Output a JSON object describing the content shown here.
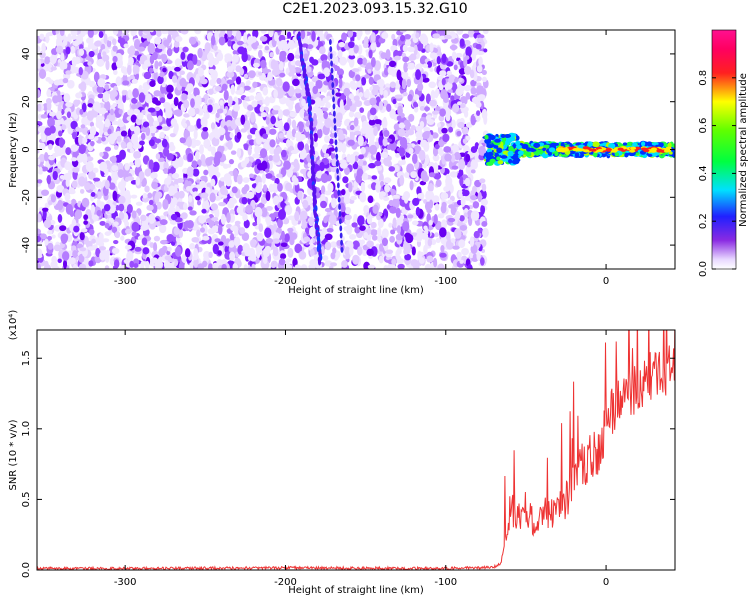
{
  "title": "C2E1.2023.093.15.32.G10",
  "colors": {
    "snr_line": "#ee3333",
    "frame": "#000000"
  },
  "chart_data": [
    {
      "type": "heatmap",
      "xlabel": "Height of straight line (km)",
      "ylabel": "Frequency (Hz)",
      "xlim": [
        -355,
        43
      ],
      "ylim": [
        -50,
        50
      ],
      "xticks": [
        -300,
        -200,
        -100,
        0
      ],
      "yticks": [
        -40,
        -20,
        0,
        20,
        40
      ],
      "colorbar": {
        "label": "Normalized spectral amplitude",
        "range": [
          0,
          1
        ],
        "ticks": [
          "0.0",
          "0.2",
          "0.4",
          "0.6",
          "0.8"
        ],
        "colormap": "rainbow (white-violet-blue-cyan-green-yellow-red-magenta)"
      },
      "features": [
        {
          "name": "noise",
          "x": [
            -355,
            -75
          ],
          "y": [
            -50,
            50
          ],
          "amplitude": "0.1-0.2"
        },
        {
          "name": "trace",
          "points": [
            [
              -192,
              48
            ],
            [
              -185,
              20
            ],
            [
              -182,
              -20
            ],
            [
              -178,
              -48
            ]
          ]
        },
        {
          "name": "signal",
          "x": [
            -75,
            43
          ],
          "center_hz": 0,
          "amplitude": "0.4-0.9"
        }
      ]
    },
    {
      "type": "line",
      "xlabel": "Height of straight line (km)",
      "ylabel": "SNR (10 * v/v)",
      "yscale_label": "(x10⁴)",
      "xlim": [
        -355,
        43
      ],
      "ylim": [
        0,
        1.7
      ],
      "xticks": [
        -300,
        -200,
        -100,
        0
      ],
      "yticks": [
        "0.0",
        "0.5",
        "1.0",
        "1.5"
      ],
      "series": [
        {
          "x": [
            -355,
            -300,
            -200,
            -100,
            -70,
            -65,
            -62,
            -60,
            -55,
            -50,
            -45,
            -40,
            -35,
            -30,
            -25,
            -20,
            -15,
            -10,
            -5,
            0,
            5,
            10,
            15,
            20,
            25,
            30,
            35,
            40,
            43
          ],
          "values": [
            0.01,
            0.01,
            0.015,
            0.01,
            0.02,
            0.05,
            0.2,
            0.45,
            0.4,
            0.45,
            0.35,
            0.4,
            0.4,
            0.42,
            0.5,
            0.65,
            0.75,
            0.8,
            0.85,
            1.0,
            1.15,
            1.2,
            1.25,
            1.3,
            1.35,
            1.4,
            1.4,
            1.42,
            1.42
          ]
        }
      ]
    }
  ]
}
